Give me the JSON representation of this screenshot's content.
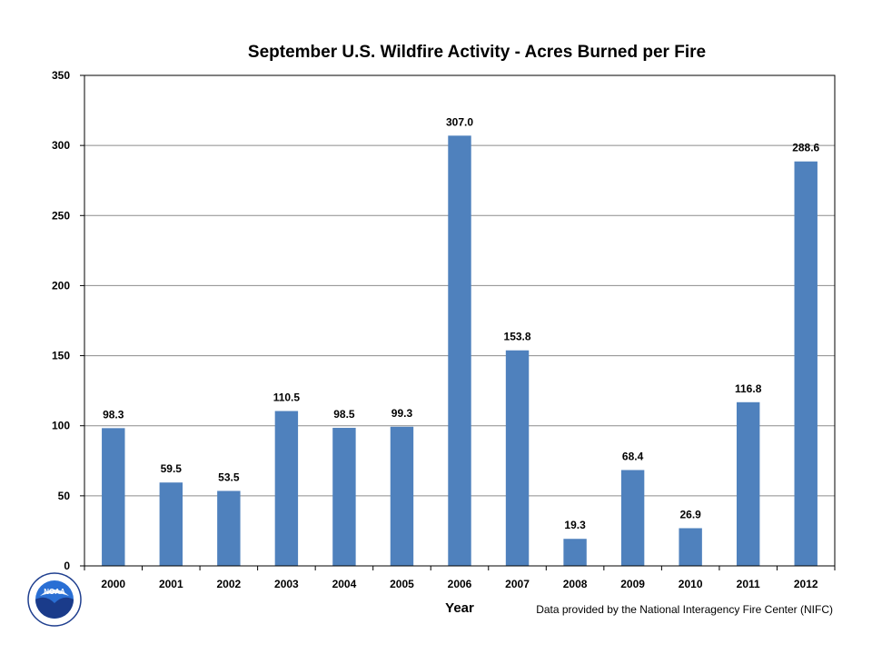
{
  "chart_data": {
    "type": "bar",
    "title": "September U.S. Wildfire Activity - Acres Burned per Fire",
    "xlabel": "Year",
    "ylabel": "",
    "categories": [
      "2000",
      "2001",
      "2002",
      "2003",
      "2004",
      "2005",
      "2006",
      "2007",
      "2008",
      "2009",
      "2010",
      "2011",
      "2012"
    ],
    "values": [
      98.3,
      59.5,
      53.5,
      110.5,
      98.5,
      99.3,
      307.0,
      153.8,
      19.3,
      68.4,
      26.9,
      116.8,
      288.6
    ],
    "value_labels": [
      "98.3",
      "59.5",
      "53.5",
      "110.5",
      "98.5",
      "99.3",
      "307.0",
      "153.8",
      "19.3",
      "68.4",
      "26.9",
      "116.8",
      "288.6"
    ],
    "ylim": [
      0,
      350
    ],
    "yticks": [
      0,
      50,
      100,
      150,
      200,
      250,
      300,
      350
    ],
    "grid": true,
    "bar_color": "#4f81bd",
    "source_note": "Data provided by the National Interagency Fire Center (NIFC)"
  },
  "logo": {
    "name": "noaa-logo",
    "text": "NOAA"
  }
}
